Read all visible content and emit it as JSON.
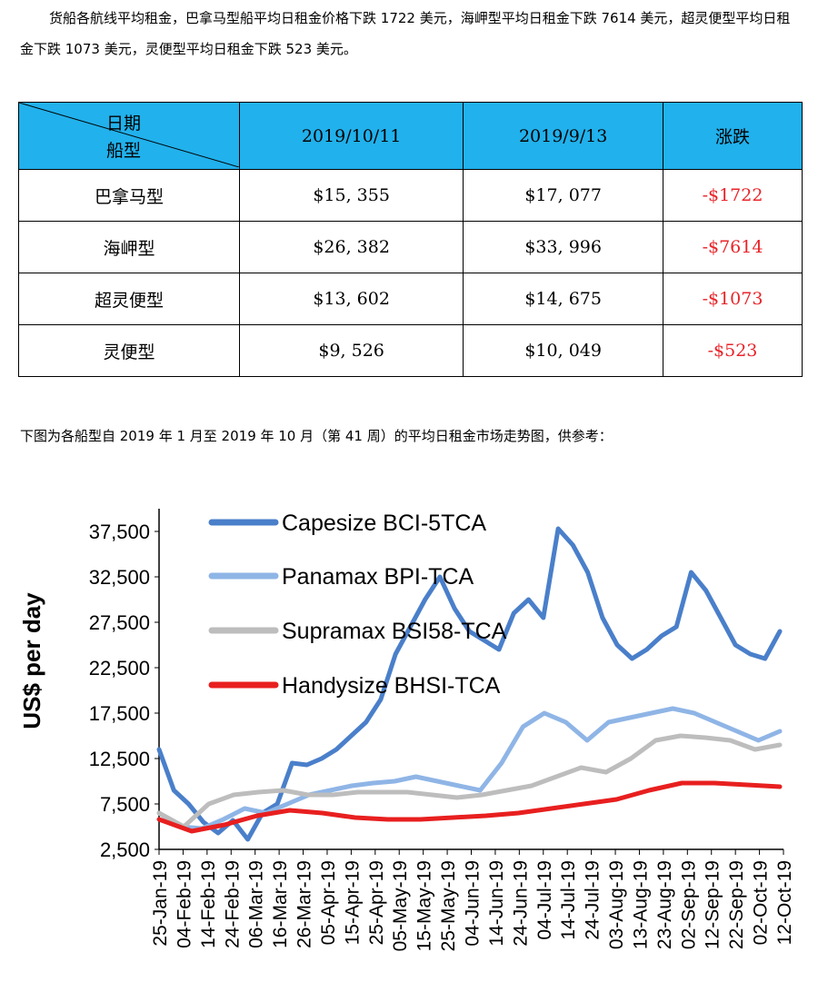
{
  "intro_text": "货船各航线平均租金，巴拿马型船平均日租金价格下跌 1722 美元，海岬型平均日租金下跌 7614 美元，超灵便型平均日租金下跌 1073 美元，灵便型平均日租金下跌 523 美元。",
  "table": {
    "corner_top": "日期",
    "corner_bottom": "船型",
    "headers": [
      "2019/10/11",
      "2019/9/13",
      "涨跌"
    ],
    "rows": [
      {
        "type": "巴拿马型",
        "oct": "$15, 355",
        "sep": "$17, 077",
        "change": "-$1722"
      },
      {
        "type": "海岬型",
        "oct": "$26, 382",
        "sep": "$33, 996",
        "change": "-$7614"
      },
      {
        "type": "超灵便型",
        "oct": "$13, 602",
        "sep": "$14, 675",
        "change": "-$1073"
      },
      {
        "type": "灵便型",
        "oct": "$9, 526",
        "sep": "$10, 049",
        "change": "-$523"
      }
    ],
    "header_color": "#21b1ec",
    "negative_color": "#e8242a"
  },
  "chart_intro": "下图为各船型自 2019 年 1 月至 2019 年 10 月（第 41 周）的平均日租金市场走势图，供参考：",
  "chart_data": {
    "type": "line",
    "ylabel": "US$ per day",
    "ylim": [
      2500,
      40000
    ],
    "yticks": [
      2500,
      7500,
      12500,
      17500,
      22500,
      27500,
      32500,
      37500
    ],
    "ytick_labels": [
      "2,500",
      "7,500",
      "12,500",
      "17,500",
      "22,500",
      "27,500",
      "32,500",
      "37,500"
    ],
    "xtick_labels": [
      "25-Jan-19",
      "04-Feb-19",
      "14-Feb-19",
      "24-Feb-19",
      "06-Mar-19",
      "16-Mar-19",
      "26-Mar-19",
      "05-Apr-19",
      "15-Apr-19",
      "25-Apr-19",
      "05-May-19",
      "15-May-19",
      "25-May-19",
      "04-Jun-19",
      "14-Jun-19",
      "24-Jun-19",
      "04-Jul-19",
      "14-Jul-19",
      "24-Jul-19",
      "03-Aug-19",
      "13-Aug-19",
      "23-Aug-19",
      "02-Sep-19",
      "12-Sep-19",
      "22-Sep-19",
      "02-Oct-19",
      "12-Oct-19"
    ],
    "grid": false,
    "legend_position": "top-left",
    "series": [
      {
        "name": "Capesize BCI-5TCA",
        "color": "#4a7fca",
        "width": 5,
        "values": [
          13500,
          9000,
          7500,
          5500,
          4300,
          5700,
          3600,
          6500,
          7500,
          12000,
          11800,
          12500,
          13500,
          15000,
          16500,
          19000,
          24000,
          27000,
          30000,
          32500,
          29000,
          26500,
          25500,
          24500,
          28500,
          30000,
          28000,
          37800,
          36000,
          33000,
          28000,
          25000,
          23500,
          24500,
          26000,
          27000,
          33000,
          31000,
          28000,
          25000,
          24000,
          23500,
          26500
        ]
      },
      {
        "name": "Panamax BPI-TCA",
        "color": "#8fb5e6",
        "width": 5,
        "values": [
          6500,
          5000,
          4800,
          5800,
          7000,
          6500,
          7500,
          8500,
          9000,
          9500,
          9800,
          10000,
          10500,
          10000,
          9500,
          9000,
          12000,
          16000,
          17500,
          16500,
          14500,
          16500,
          17000,
          17500,
          18000,
          17500,
          16500,
          15500,
          14500,
          15500
        ]
      },
      {
        "name": "Supramax BSI58-TCA",
        "color": "#bdbdbd",
        "width": 5,
        "values": [
          6500,
          5000,
          7500,
          8500,
          8800,
          9000,
          8500,
          8500,
          8800,
          8800,
          8800,
          8500,
          8200,
          8500,
          9000,
          9500,
          10500,
          11500,
          11000,
          12500,
          14500,
          15000,
          14800,
          14500,
          13500,
          14000
        ]
      },
      {
        "name": "Handysize BHSI-TCA",
        "color": "#e81f1f",
        "width": 5,
        "values": [
          5800,
          4500,
          5200,
          6200,
          6800,
          6500,
          6000,
          5800,
          5800,
          6000,
          6200,
          6500,
          7000,
          7500,
          8000,
          9000,
          9800,
          9800,
          9600,
          9400
        ]
      }
    ]
  }
}
